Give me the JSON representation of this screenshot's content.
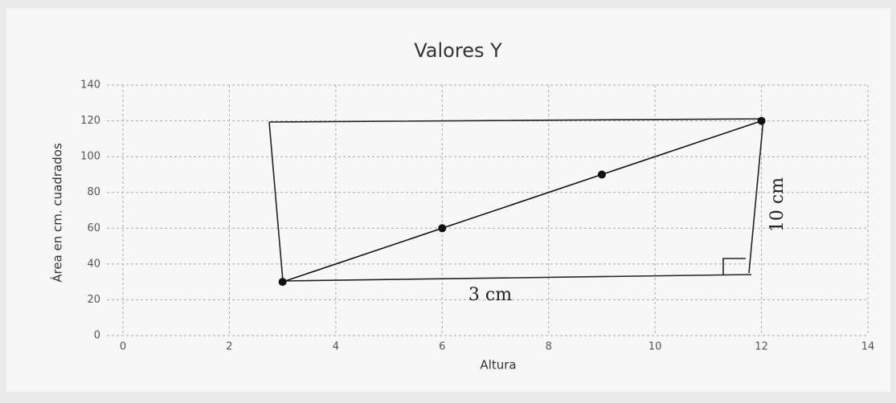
{
  "chart_data": {
    "type": "line",
    "title": "Valores Y",
    "x_label": "Altura",
    "y_label": "Área en cm. cuadrados",
    "x": [
      3,
      6,
      9,
      12
    ],
    "values": [
      30,
      60,
      90,
      120
    ],
    "color": "#111111",
    "xlim": [
      0,
      14
    ],
    "xticks": [
      0,
      2,
      4,
      6,
      8,
      10,
      12,
      14
    ],
    "ylim": [
      0,
      140
    ],
    "yticks": [
      0,
      20,
      40,
      60,
      80,
      100,
      120,
      140
    ],
    "grid": true,
    "annotations": [
      "3 cm",
      "10 cm"
    ]
  }
}
